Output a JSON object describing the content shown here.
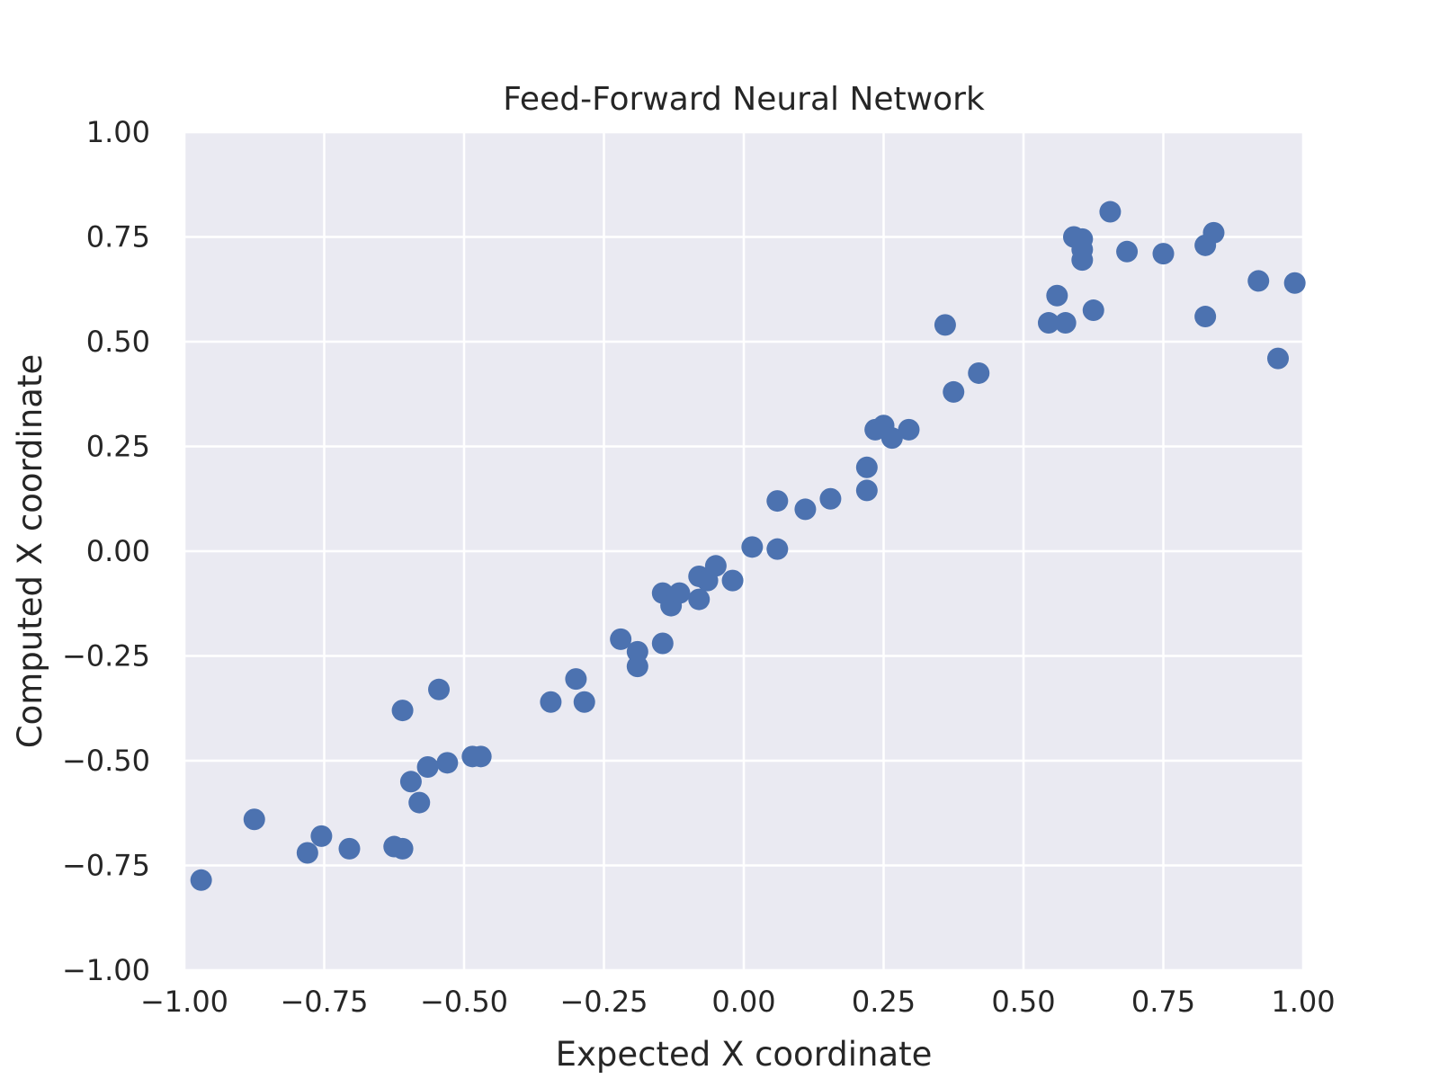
{
  "chart_data": {
    "type": "scatter",
    "title": "Feed-Forward Neural Network",
    "xlabel": "Expected X coordinate",
    "ylabel": "Computed X coordinate",
    "xlim": [
      -1.0,
      1.0
    ],
    "ylim": [
      -1.0,
      1.0
    ],
    "grid": true,
    "x_ticks": [
      "−1.00",
      "−0.75",
      "−0.50",
      "−0.25",
      "0.00",
      "0.25",
      "0.50",
      "0.75",
      "1.00"
    ],
    "y_ticks": [
      "−1.00",
      "−0.75",
      "−0.50",
      "−0.25",
      "0.00",
      "0.25",
      "0.50",
      "0.75",
      "1.00"
    ],
    "colors": {
      "plot_bg": "#eaeaf2",
      "grid": "#ffffff",
      "marker": "#4c72b0",
      "text": "#262626"
    },
    "points": [
      {
        "x": -0.97,
        "y": -0.785
      },
      {
        "x": -0.875,
        "y": -0.64
      },
      {
        "x": -0.78,
        "y": -0.72
      },
      {
        "x": -0.755,
        "y": -0.68
      },
      {
        "x": -0.705,
        "y": -0.71
      },
      {
        "x": -0.625,
        "y": -0.705
      },
      {
        "x": -0.61,
        "y": -0.71
      },
      {
        "x": -0.61,
        "y": -0.38
      },
      {
        "x": -0.595,
        "y": -0.55
      },
      {
        "x": -0.58,
        "y": -0.6
      },
      {
        "x": -0.565,
        "y": -0.515
      },
      {
        "x": -0.545,
        "y": -0.33
      },
      {
        "x": -0.53,
        "y": -0.505
      },
      {
        "x": -0.485,
        "y": -0.49
      },
      {
        "x": -0.47,
        "y": -0.49
      },
      {
        "x": -0.345,
        "y": -0.36
      },
      {
        "x": -0.3,
        "y": -0.305
      },
      {
        "x": -0.285,
        "y": -0.36
      },
      {
        "x": -0.22,
        "y": -0.21
      },
      {
        "x": -0.19,
        "y": -0.24
      },
      {
        "x": -0.19,
        "y": -0.275
      },
      {
        "x": -0.145,
        "y": -0.1
      },
      {
        "x": -0.145,
        "y": -0.22
      },
      {
        "x": -0.13,
        "y": -0.13
      },
      {
        "x": -0.115,
        "y": -0.1
      },
      {
        "x": -0.08,
        "y": -0.06
      },
      {
        "x": -0.08,
        "y": -0.115
      },
      {
        "x": -0.065,
        "y": -0.07
      },
      {
        "x": -0.05,
        "y": -0.035
      },
      {
        "x": -0.02,
        "y": -0.07
      },
      {
        "x": 0.015,
        "y": 0.01
      },
      {
        "x": 0.06,
        "y": 0.005
      },
      {
        "x": 0.06,
        "y": 0.12
      },
      {
        "x": 0.11,
        "y": 0.1
      },
      {
        "x": 0.155,
        "y": 0.125
      },
      {
        "x": 0.22,
        "y": 0.2
      },
      {
        "x": 0.22,
        "y": 0.145
      },
      {
        "x": 0.235,
        "y": 0.29
      },
      {
        "x": 0.25,
        "y": 0.3
      },
      {
        "x": 0.265,
        "y": 0.27
      },
      {
        "x": 0.295,
        "y": 0.29
      },
      {
        "x": 0.36,
        "y": 0.54
      },
      {
        "x": 0.375,
        "y": 0.38
      },
      {
        "x": 0.42,
        "y": 0.425
      },
      {
        "x": 0.545,
        "y": 0.545
      },
      {
        "x": 0.56,
        "y": 0.61
      },
      {
        "x": 0.575,
        "y": 0.545
      },
      {
        "x": 0.59,
        "y": 0.75
      },
      {
        "x": 0.605,
        "y": 0.745
      },
      {
        "x": 0.605,
        "y": 0.72
      },
      {
        "x": 0.605,
        "y": 0.695
      },
      {
        "x": 0.625,
        "y": 0.575
      },
      {
        "x": 0.655,
        "y": 0.81
      },
      {
        "x": 0.685,
        "y": 0.715
      },
      {
        "x": 0.75,
        "y": 0.71
      },
      {
        "x": 0.825,
        "y": 0.73
      },
      {
        "x": 0.825,
        "y": 0.56
      },
      {
        "x": 0.84,
        "y": 0.76
      },
      {
        "x": 0.92,
        "y": 0.645
      },
      {
        "x": 0.955,
        "y": 0.46
      },
      {
        "x": 0.985,
        "y": 0.64
      }
    ]
  }
}
